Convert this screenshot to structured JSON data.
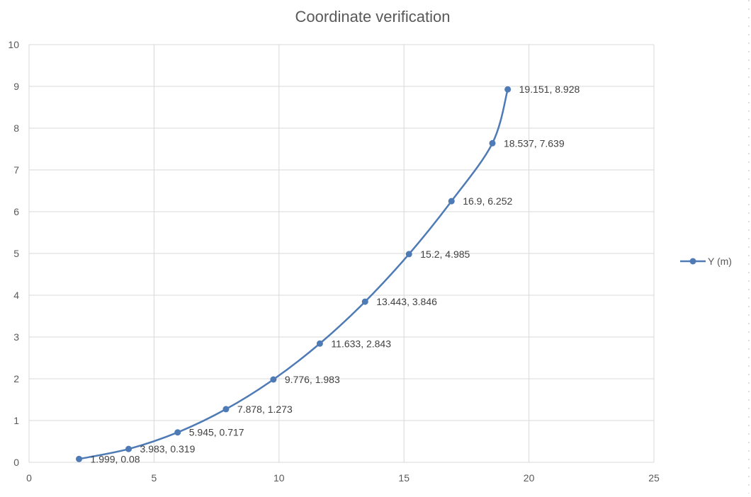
{
  "chart_data": {
    "type": "scatter",
    "title": "Coordinate verification",
    "xlabel": "",
    "ylabel": "",
    "xlim": [
      0,
      25
    ],
    "ylim": [
      0,
      10
    ],
    "x_ticks": [
      "0",
      "5",
      "10",
      "15",
      "20",
      "25"
    ],
    "y_ticks": [
      "0",
      "1",
      "2",
      "3",
      "4",
      "5",
      "6",
      "7",
      "8",
      "9",
      "10"
    ],
    "grid": true,
    "smooth_line": true,
    "markers": true,
    "legend_position": "right",
    "series": [
      {
        "name": "Y (m)",
        "color": "#4e7ab5",
        "points": [
          {
            "x": 1.999,
            "y": 0.08,
            "label": "1.999, 0.08"
          },
          {
            "x": 3.983,
            "y": 0.319,
            "label": "3.983, 0.319"
          },
          {
            "x": 5.945,
            "y": 0.717,
            "label": "5.945, 0.717"
          },
          {
            "x": 7.878,
            "y": 1.273,
            "label": "7.878, 1.273"
          },
          {
            "x": 9.776,
            "y": 1.983,
            "label": "9.776, 1.983"
          },
          {
            "x": 11.633,
            "y": 2.843,
            "label": "11.633, 2.843"
          },
          {
            "x": 13.443,
            "y": 3.846,
            "label": "13.443, 3.846"
          },
          {
            "x": 15.2,
            "y": 4.985,
            "label": "15.2, 4.985"
          },
          {
            "x": 16.9,
            "y": 6.252,
            "label": "16.9, 6.252"
          },
          {
            "x": 18.537,
            "y": 7.639,
            "label": "18.537, 7.639"
          },
          {
            "x": 19.151,
            "y": 8.928,
            "label": "19.151, 8.928"
          }
        ]
      }
    ]
  }
}
